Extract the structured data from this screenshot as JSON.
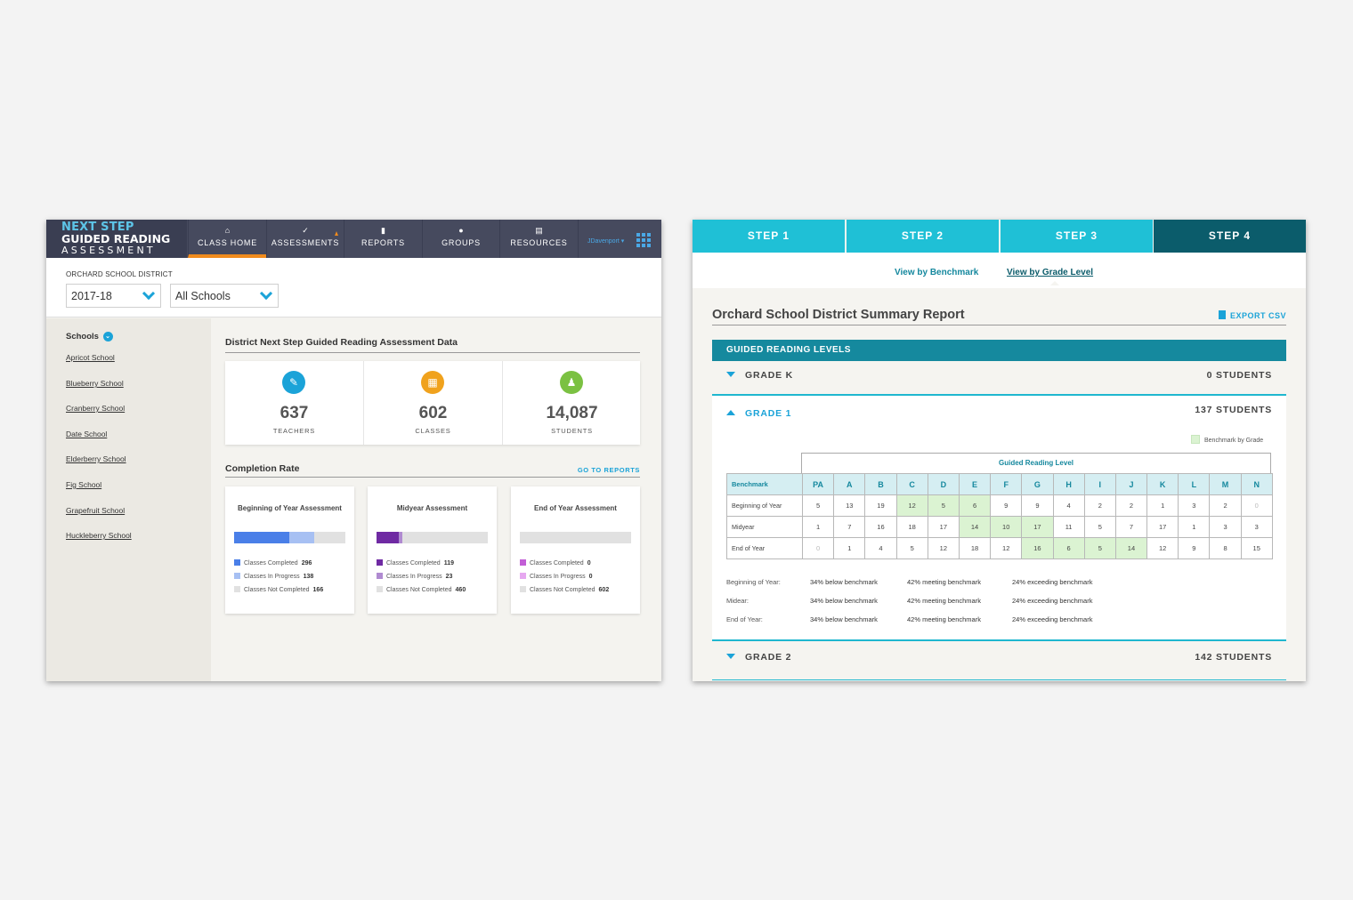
{
  "left": {
    "logo": {
      "line1": "NEXT STEP",
      "line2": "GUIDED READING",
      "line3": "ASSESSMENT"
    },
    "nav": [
      {
        "icon": "home-icon",
        "glyph": "⌂",
        "label": "CLASS HOME"
      },
      {
        "icon": "check-icon",
        "glyph": "✓",
        "label": "ASSESSMENTS"
      },
      {
        "icon": "bar-chart-icon",
        "glyph": "▮",
        "label": "REPORTS"
      },
      {
        "icon": "group-icon",
        "glyph": "●",
        "label": "GROUPS"
      },
      {
        "icon": "document-icon",
        "glyph": "▤",
        "label": "RESOURCES"
      }
    ],
    "user": {
      "name": "JDavenport ▾"
    },
    "district_label": "ORCHARD SCHOOL DISTRICT",
    "year_select": "2017-18",
    "school_select": "All Schools",
    "schools_heading": "Schools",
    "schools": [
      "Apricot School",
      "Blueberry School",
      "Cranberry School",
      "Date School",
      "Elderberry School",
      "Fig School",
      "Grapefruit School",
      "Huckleberry School"
    ],
    "main_title": "District Next Step Guided Reading Assessment Data",
    "stats": [
      {
        "icon": "teacher-icon",
        "glyph": "✎",
        "color": "#1ba3d8",
        "value": "637",
        "label": "TEACHERS"
      },
      {
        "icon": "classroom-icon",
        "glyph": "▦",
        "color": "#f0a21d",
        "value": "602",
        "label": "CLASSES"
      },
      {
        "icon": "student-icon",
        "glyph": "♟",
        "color": "#7bc142",
        "value": "14,087",
        "label": "STUDENTS"
      }
    ],
    "completion_title": "Completion Rate",
    "goto_reports": "GO TO REPORTS",
    "completion": [
      {
        "title": "Beginning of Year Assessment",
        "completed": 296,
        "in_progress": 138,
        "not_completed": 166,
        "colors": [
          "#4a7fe8",
          "#a7c0f3"
        ],
        "labels": [
          "Classes Completed",
          "Classes In Progress",
          "Classes Not Completed"
        ]
      },
      {
        "title": "Midyear Assessment",
        "completed": 119,
        "in_progress": 23,
        "not_completed": 460,
        "colors": [
          "#6f2aa3",
          "#b08bd1"
        ],
        "labels": [
          "Classes Completed",
          "Classes In Progress",
          "Classes Not Completed"
        ]
      },
      {
        "title": "End of Year Assessment",
        "completed": 0,
        "in_progress": 0,
        "not_completed": 602,
        "colors": [
          "#c25ed6",
          "#e6a8f0"
        ],
        "labels": [
          "Classes Completed",
          "Classes In Progress",
          "Classes Not Completed"
        ]
      }
    ]
  },
  "right": {
    "steps": [
      "STEP 1",
      "STEP 2",
      "STEP 3",
      "STEP 4"
    ],
    "active_step": 3,
    "view_benchmark": "View by Benchmark",
    "view_grade": "View by Grade Level",
    "report_title": "Orchard School District Summary Report",
    "export": "EXPORT CSV",
    "section_title": "GUIDED READING LEVELS",
    "grades": [
      {
        "name": "GRADE K",
        "count": "0 STUDENTS"
      },
      {
        "name": "GRADE 1",
        "count": "137 STUDENTS"
      },
      {
        "name": "GRADE 2",
        "count": "142 STUDENTS"
      }
    ],
    "legend": "Benchmark by Grade",
    "table_title": "Guided Reading Level",
    "table": {
      "header_label": "Benchmark",
      "levels": [
        "PA",
        "A",
        "B",
        "C",
        "D",
        "E",
        "F",
        "G",
        "H",
        "I",
        "J",
        "K",
        "L",
        "M",
        "N"
      ],
      "rows": [
        {
          "label": "Beginning of Year",
          "values": [
            "5",
            "13",
            "19",
            "12",
            "5",
            "6",
            "9",
            "9",
            "4",
            "2",
            "2",
            "1",
            "3",
            "2",
            "0"
          ],
          "benchmark_cols": [
            3,
            4,
            5
          ]
        },
        {
          "label": "Midyear",
          "values": [
            "1",
            "7",
            "16",
            "18",
            "17",
            "14",
            "10",
            "17",
            "11",
            "5",
            "7",
            "17",
            "1",
            "3",
            "3"
          ],
          "benchmark_cols": [
            5,
            6,
            7
          ]
        },
        {
          "label": "End of Year",
          "values": [
            "0",
            "1",
            "4",
            "5",
            "12",
            "18",
            "12",
            "16",
            "6",
            "5",
            "14",
            "12",
            "9",
            "8",
            "15"
          ],
          "benchmark_cols": [
            7,
            8,
            9,
            10
          ]
        }
      ]
    },
    "benchmark_summary": [
      {
        "label": "Beginning of Year:",
        "below": "34% below benchmark",
        "meeting": "42% meeting benchmark",
        "exceeding": "24% exceeding benchmark"
      },
      {
        "label": "Midear:",
        "below": "34% below benchmark",
        "meeting": "42% meeting benchmark",
        "exceeding": "24% exceeding benchmark"
      },
      {
        "label": "End of Year:",
        "below": "34% below benchmark",
        "meeting": "42% meeting benchmark",
        "exceeding": "24% exceeding benchmark"
      }
    ]
  }
}
